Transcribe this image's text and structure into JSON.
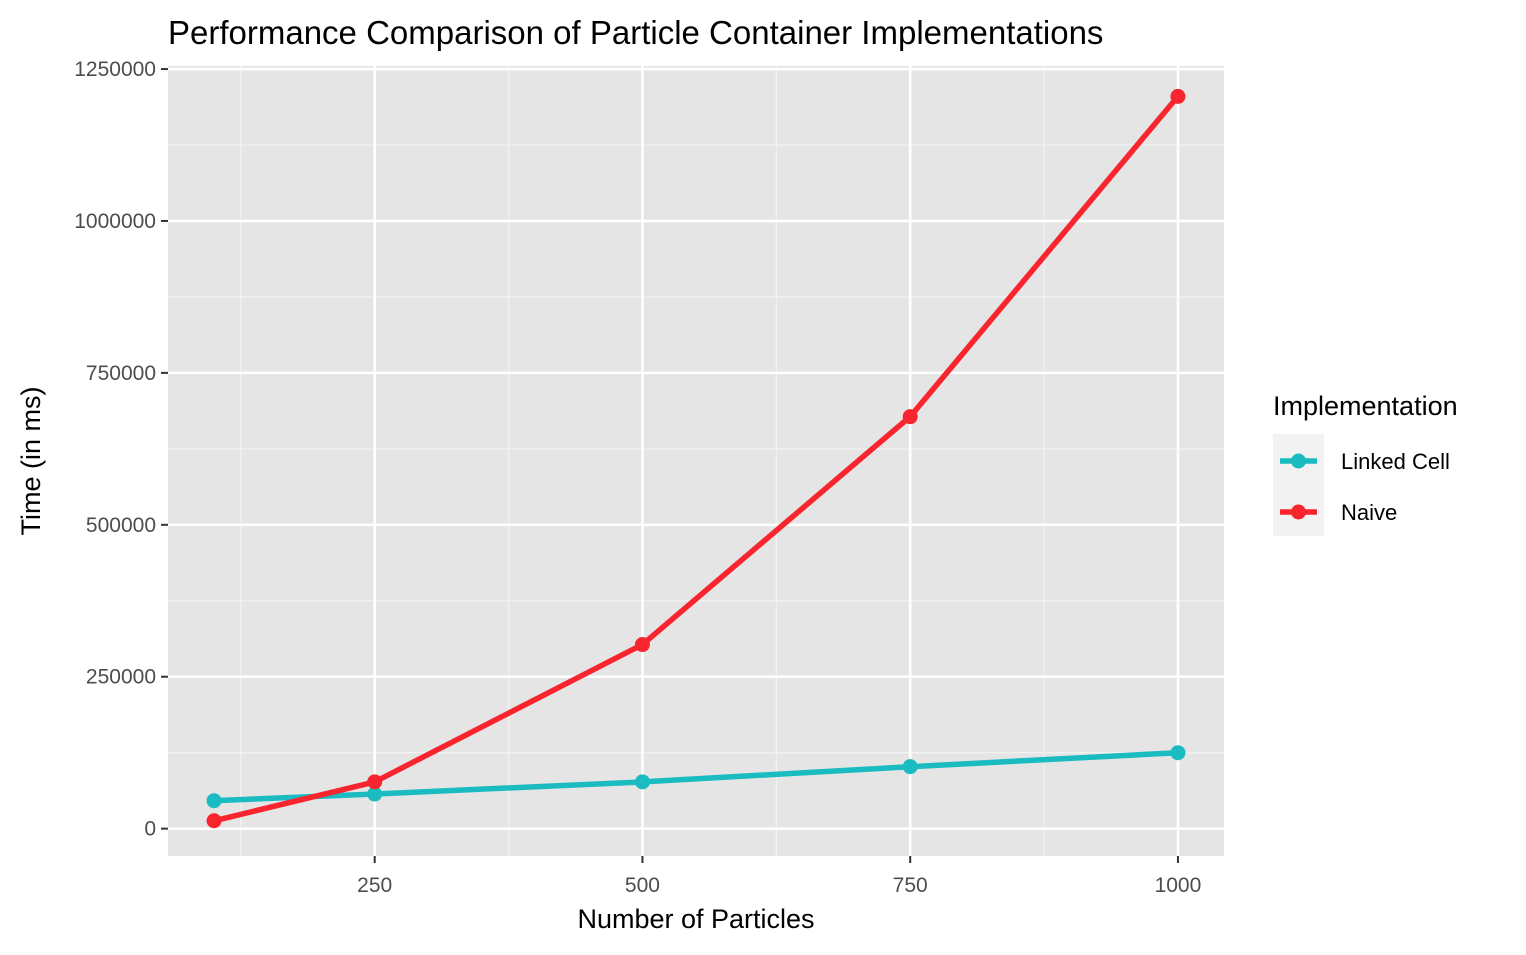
{
  "chart_data": {
    "type": "line",
    "title": "Performance Comparison of Particle Container Implementations",
    "xlabel": "Number of Particles",
    "ylabel": "Time (in ms)",
    "xlim": [
      57,
      1043
    ],
    "ylim": [
      -45000,
      1255000
    ],
    "x_ticks": [
      250,
      500,
      750,
      1000
    ],
    "x_tick_labels": [
      "250",
      "500",
      "750",
      "1000"
    ],
    "x_minor_ticks": [
      125,
      375,
      625,
      875
    ],
    "y_ticks": [
      0,
      250000,
      500000,
      750000,
      1000000,
      1250000
    ],
    "y_tick_labels": [
      "0",
      "250000",
      "500000",
      "750000",
      "1000000",
      "1250000"
    ],
    "y_minor_ticks": [
      125000,
      375000,
      625000,
      875000,
      1125000
    ],
    "grid": true,
    "legend": {
      "title": "Implementation",
      "position": "right"
    },
    "series": [
      {
        "name": "Linked Cell",
        "color": "#1ABBC1",
        "x": [
          100,
          250,
          500,
          750,
          1000
        ],
        "y": [
          46000,
          57000,
          77000,
          102000,
          125000
        ]
      },
      {
        "name": "Naive",
        "color": "#F8252F",
        "x": [
          100,
          250,
          500,
          750,
          1000
        ],
        "y": [
          13000,
          77000,
          303000,
          678000,
          1205000
        ]
      }
    ]
  }
}
